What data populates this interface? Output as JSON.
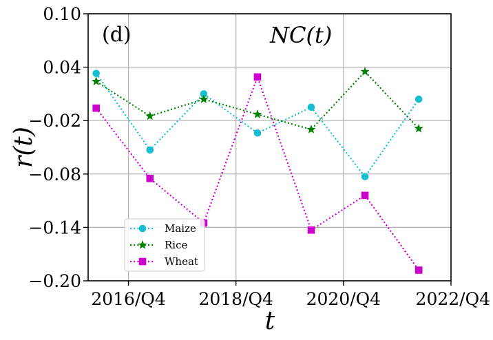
{
  "chart_data": {
    "type": "line",
    "panel_label": "(d)",
    "title": "NC(t)",
    "xlabel": "t",
    "ylabel": "r(t)",
    "ylim": [
      -0.2,
      0.1
    ],
    "yticks": [
      "0.10",
      "0.04",
      "−0.02",
      "−0.08",
      "−0.14",
      "−0.20"
    ],
    "ytick_values": [
      0.1,
      0.04,
      -0.02,
      -0.08,
      -0.14,
      -0.2
    ],
    "xlim": [
      2015.55,
      2022.3
    ],
    "xtick_values": [
      2016.3,
      2018.3,
      2020.3,
      2022.3
    ],
    "xticks": [
      "2016/Q4",
      "2018/Q4",
      "2020/Q4",
      "2022/Q4"
    ],
    "grid": true,
    "legend_position": "lower-left",
    "x": [
      2015.7,
      2016.7,
      2017.7,
      2018.7,
      2019.7,
      2020.7,
      2021.7
    ],
    "series": [
      {
        "name": "Maize",
        "color": "#17becf",
        "marker": "circle",
        "values": [
          0.033,
          -0.053,
          0.01,
          -0.034,
          -0.005,
          -0.083,
          0.004
        ]
      },
      {
        "name": "Rice",
        "color": "#008000",
        "marker": "star",
        "values": [
          0.024,
          -0.015,
          0.004,
          -0.013,
          -0.03,
          0.035,
          -0.029
        ]
      },
      {
        "name": "Wheat",
        "color": "#cc00cc",
        "marker": "square",
        "values": [
          -0.006,
          -0.085,
          -0.135,
          0.029,
          -0.143,
          -0.104,
          -0.188
        ]
      }
    ]
  }
}
